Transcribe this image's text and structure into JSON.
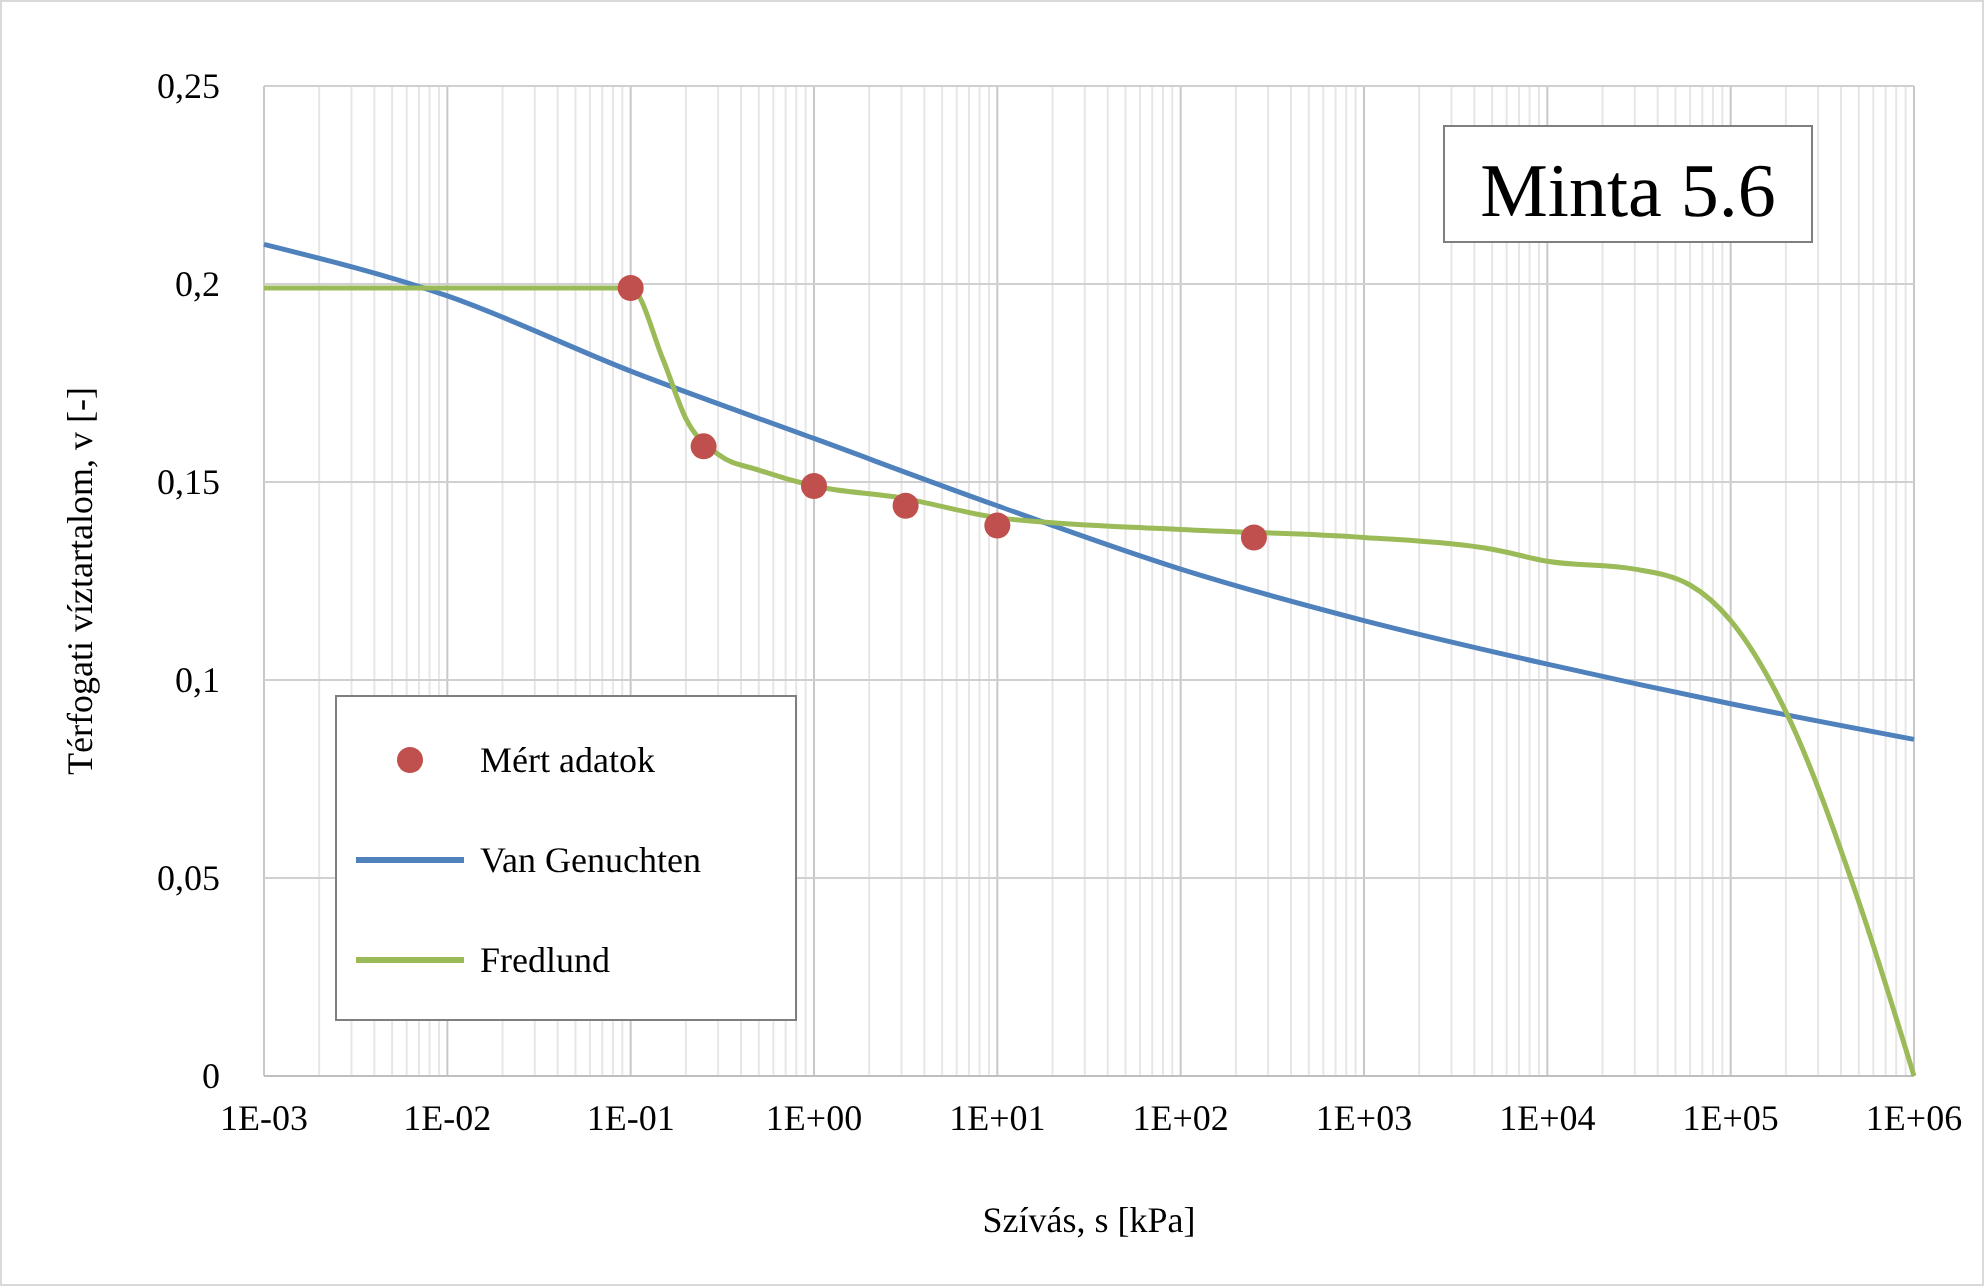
{
  "chart_data": {
    "type": "line",
    "xlabel": "Szívás, s [kPa]",
    "ylabel": "Térfogati víztartalom, v [-]",
    "log": "x",
    "grid": true,
    "legend": "bottom left",
    "annotations": [
      "Minta 5.6"
    ],
    "xlim": [
      0.001,
      1000000
    ],
    "ylim": [
      0,
      0.25
    ],
    "xticks": [
      {
        "value": 0.001,
        "label": "1E-03"
      },
      {
        "value": 0.01,
        "label": "1E-02"
      },
      {
        "value": 0.1,
        "label": "1E-01"
      },
      {
        "value": 1,
        "label": "1E+00"
      },
      {
        "value": 10,
        "label": "1E+01"
      },
      {
        "value": 100,
        "label": "1E+02"
      },
      {
        "value": 1000,
        "label": "1E+03"
      },
      {
        "value": 10000,
        "label": "1E+04"
      },
      {
        "value": 100000,
        "label": "1E+05"
      },
      {
        "value": 1000000,
        "label": "1E+06"
      }
    ],
    "yticks": [
      {
        "value": 0,
        "label": "0"
      },
      {
        "value": 0.05,
        "label": "0,05"
      },
      {
        "value": 0.1,
        "label": "0,1"
      },
      {
        "value": 0.15,
        "label": "0,15"
      },
      {
        "value": 0.2,
        "label": "0,2"
      },
      {
        "value": 0.25,
        "label": "0,25"
      }
    ],
    "series": [
      {
        "name": "Mért adatok",
        "type": "scatter",
        "marker": "circle",
        "color": "#c0504d",
        "x": [
          0.1,
          0.25,
          1,
          3.16,
          10,
          251
        ],
        "values": [
          0.199,
          0.159,
          0.149,
          0.144,
          0.139,
          0.136
        ]
      },
      {
        "name": "Van Genuchten",
        "marker": "none",
        "color": "#4f81bd",
        "x": [
          0.001,
          0.01,
          0.1,
          1,
          10,
          100,
          1000,
          10000,
          100000,
          1000000
        ],
        "values": [
          0.21,
          0.197,
          0.178,
          0.161,
          0.144,
          0.128,
          0.115,
          0.104,
          0.094,
          0.085
        ]
      },
      {
        "name": "Fredlund",
        "marker": "none",
        "color": "#9bbb59",
        "x": [
          0.001,
          0.01,
          0.1,
          0.15,
          0.2,
          0.3,
          0.5,
          1,
          3,
          10,
          100,
          1000,
          5000,
          10000,
          30000,
          60000,
          100000,
          200000,
          500000,
          1000000
        ],
        "values": [
          0.199,
          0.199,
          0.199,
          0.181,
          0.166,
          0.157,
          0.153,
          0.149,
          0.146,
          0.141,
          0.138,
          0.136,
          0.133,
          0.13,
          0.128,
          0.124,
          0.115,
          0.092,
          0.044,
          0
        ]
      }
    ]
  }
}
